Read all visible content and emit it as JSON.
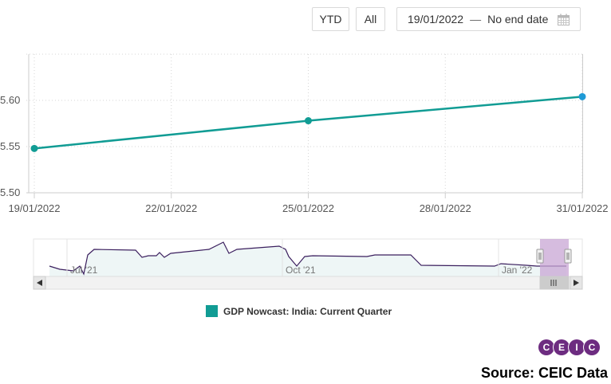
{
  "toolbar": {
    "ytd_label": "YTD",
    "all_label": "All",
    "date_from": "19/01/2022",
    "date_separator": "—",
    "date_to": "No end date",
    "calendar_icon": "calendar-icon"
  },
  "chart_data": {
    "type": "line",
    "title": "",
    "xlabel": "",
    "ylabel": "",
    "x_ticks": [
      "19/01/2022",
      "22/01/2022",
      "25/01/2022",
      "28/01/2022",
      "31/01/2022"
    ],
    "y_ticks": [
      "5.50",
      "5.55",
      "5.60"
    ],
    "ylim": [
      5.5,
      5.65
    ],
    "grid": true,
    "legend_position": "bottom-center",
    "series": [
      {
        "name": "GDP Nowcast: India: Current Quarter",
        "color": "#119c94",
        "points": [
          {
            "x": "19/01/2022",
            "y": 5.548
          },
          {
            "x": "25/01/2022",
            "y": 5.578
          },
          {
            "x": "31/01/2022",
            "y": 5.604
          }
        ]
      }
    ],
    "navigator": {
      "labels": [
        "Jul '21",
        "Oct '21",
        "Jan '22"
      ],
      "line_color": "#3b1f5e",
      "selection_color": "#c8a6d4",
      "scroll_left_icon": "arrow-left-icon",
      "scroll_right_icon": "arrow-right-icon",
      "scroll_grip_icon": "grip-icon"
    }
  },
  "footer": {
    "logo_letters": [
      "C",
      "E",
      "I",
      "C"
    ],
    "source": "Source: CEIC Data"
  }
}
